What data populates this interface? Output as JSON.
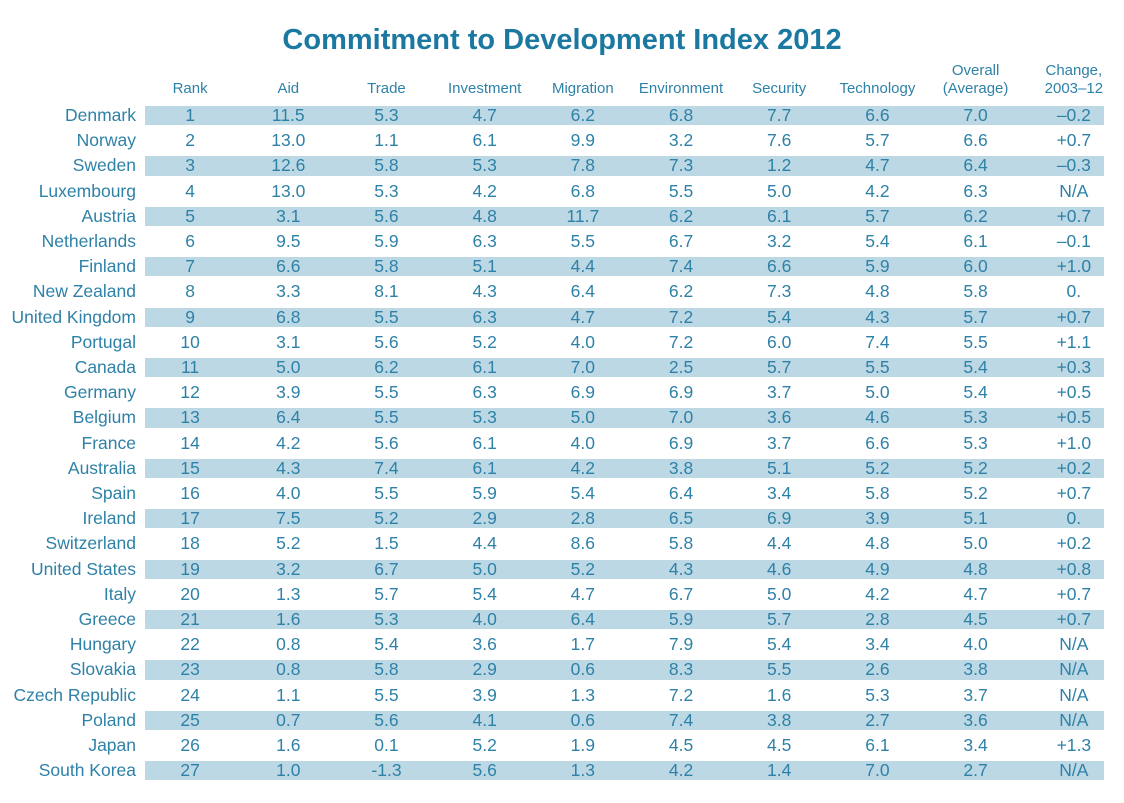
{
  "styles": {
    "band_color": "#bcd8e5",
    "text_color": "#2e81a7",
    "title_color": "#1b79a1"
  },
  "chart_data": {
    "type": "table",
    "title": "Commitment to Development Index 2012",
    "columns": [
      {
        "id": "rank",
        "lines": [
          "Rank"
        ]
      },
      {
        "id": "aid",
        "lines": [
          "Aid"
        ]
      },
      {
        "id": "trade",
        "lines": [
          "Trade"
        ]
      },
      {
        "id": "investment",
        "lines": [
          "Investment"
        ]
      },
      {
        "id": "migration",
        "lines": [
          "Migration"
        ]
      },
      {
        "id": "environment",
        "lines": [
          "Environment"
        ]
      },
      {
        "id": "security",
        "lines": [
          "Security"
        ]
      },
      {
        "id": "technology",
        "lines": [
          "Technology"
        ]
      },
      {
        "id": "overall",
        "lines": [
          "Overall",
          "(Average)"
        ]
      },
      {
        "id": "change",
        "lines": [
          "Change,",
          "2003–12"
        ]
      }
    ],
    "rows": [
      {
        "country": "Denmark",
        "values": [
          "1",
          "11.5",
          "5.3",
          "4.7",
          "6.2",
          "6.8",
          "7.7",
          "6.6",
          "7.0",
          "–0.2"
        ]
      },
      {
        "country": "Norway",
        "values": [
          "2",
          "13.0",
          "1.1",
          "6.1",
          "9.9",
          "3.2",
          "7.6",
          "5.7",
          "6.6",
          "+0.7"
        ]
      },
      {
        "country": "Sweden",
        "values": [
          "3",
          "12.6",
          "5.8",
          "5.3",
          "7.8",
          "7.3",
          "1.2",
          "4.7",
          "6.4",
          "–0.3"
        ]
      },
      {
        "country": "Luxembourg",
        "values": [
          "4",
          "13.0",
          "5.3",
          "4.2",
          "6.8",
          "5.5",
          "5.0",
          "4.2",
          "6.3",
          "N/A"
        ]
      },
      {
        "country": "Austria",
        "values": [
          "5",
          "3.1",
          "5.6",
          "4.8",
          "11.7",
          "6.2",
          "6.1",
          "5.7",
          "6.2",
          "+0.7"
        ]
      },
      {
        "country": "Netherlands",
        "values": [
          "6",
          "9.5",
          "5.9",
          "6.3",
          "5.5",
          "6.7",
          "3.2",
          "5.4",
          "6.1",
          "–0.1"
        ]
      },
      {
        "country": "Finland",
        "values": [
          "7",
          "6.6",
          "5.8",
          "5.1",
          "4.4",
          "7.4",
          "6.6",
          "5.9",
          "6.0",
          "+1.0"
        ]
      },
      {
        "country": "New Zealand",
        "values": [
          "8",
          "3.3",
          "8.1",
          "4.3",
          "6.4",
          "6.2",
          "7.3",
          "4.8",
          "5.8",
          "0."
        ]
      },
      {
        "country": "United Kingdom",
        "values": [
          "9",
          "6.8",
          "5.5",
          "6.3",
          "4.7",
          "7.2",
          "5.4",
          "4.3",
          "5.7",
          "+0.7"
        ]
      },
      {
        "country": "Portugal",
        "values": [
          "10",
          "3.1",
          "5.6",
          "5.2",
          "4.0",
          "7.2",
          "6.0",
          "7.4",
          "5.5",
          "+1.1"
        ]
      },
      {
        "country": "Canada",
        "values": [
          "11",
          "5.0",
          "6.2",
          "6.1",
          "7.0",
          "2.5",
          "5.7",
          "5.5",
          "5.4",
          "+0.3"
        ]
      },
      {
        "country": "Germany",
        "values": [
          "12",
          "3.9",
          "5.5",
          "6.3",
          "6.9",
          "6.9",
          "3.7",
          "5.0",
          "5.4",
          "+0.5"
        ]
      },
      {
        "country": "Belgium",
        "values": [
          "13",
          "6.4",
          "5.5",
          "5.3",
          "5.0",
          "7.0",
          "3.6",
          "4.6",
          "5.3",
          "+0.5"
        ]
      },
      {
        "country": "France",
        "values": [
          "14",
          "4.2",
          "5.6",
          "6.1",
          "4.0",
          "6.9",
          "3.7",
          "6.6",
          "5.3",
          "+1.0"
        ]
      },
      {
        "country": "Australia",
        "values": [
          "15",
          "4.3",
          "7.4",
          "6.1",
          "4.2",
          "3.8",
          "5.1",
          "5.2",
          "5.2",
          "+0.2"
        ]
      },
      {
        "country": "Spain",
        "values": [
          "16",
          "4.0",
          "5.5",
          "5.9",
          "5.4",
          "6.4",
          "3.4",
          "5.8",
          "5.2",
          "+0.7"
        ]
      },
      {
        "country": "Ireland",
        "values": [
          "17",
          "7.5",
          "5.2",
          "2.9",
          "2.8",
          "6.5",
          "6.9",
          "3.9",
          "5.1",
          "0."
        ]
      },
      {
        "country": "Switzerland",
        "values": [
          "18",
          "5.2",
          "1.5",
          "4.4",
          "8.6",
          "5.8",
          "4.4",
          "4.8",
          "5.0",
          "+0.2"
        ]
      },
      {
        "country": "United States",
        "values": [
          "19",
          "3.2",
          "6.7",
          "5.0",
          "5.2",
          "4.3",
          "4.6",
          "4.9",
          "4.8",
          "+0.8"
        ]
      },
      {
        "country": "Italy",
        "values": [
          "20",
          "1.3",
          "5.7",
          "5.4",
          "4.7",
          "6.7",
          "5.0",
          "4.2",
          "4.7",
          "+0.7"
        ]
      },
      {
        "country": "Greece",
        "values": [
          "21",
          "1.6",
          "5.3",
          "4.0",
          "6.4",
          "5.9",
          "5.7",
          "2.8",
          "4.5",
          "+0.7"
        ]
      },
      {
        "country": "Hungary",
        "values": [
          "22",
          "0.8",
          "5.4",
          "3.6",
          "1.7",
          "7.9",
          "5.4",
          "3.4",
          "4.0",
          "N/A"
        ]
      },
      {
        "country": "Slovakia",
        "values": [
          "23",
          "0.8",
          "5.8",
          "2.9",
          "0.6",
          "8.3",
          "5.5",
          "2.6",
          "3.8",
          "N/A"
        ]
      },
      {
        "country": "Czech Republic",
        "values": [
          "24",
          "1.1",
          "5.5",
          "3.9",
          "1.3",
          "7.2",
          "1.6",
          "5.3",
          "3.7",
          "N/A"
        ]
      },
      {
        "country": "Poland",
        "values": [
          "25",
          "0.7",
          "5.6",
          "4.1",
          "0.6",
          "7.4",
          "3.8",
          "2.7",
          "3.6",
          "N/A"
        ]
      },
      {
        "country": "Japan",
        "values": [
          "26",
          "1.6",
          "0.1",
          "5.2",
          "1.9",
          "4.5",
          "4.5",
          "6.1",
          "3.4",
          "+1.3"
        ]
      },
      {
        "country": "South Korea",
        "values": [
          "27",
          "1.0",
          "-1.3",
          "5.6",
          "1.3",
          "4.2",
          "1.4",
          "7.0",
          "2.7",
          "N/A"
        ]
      }
    ]
  }
}
